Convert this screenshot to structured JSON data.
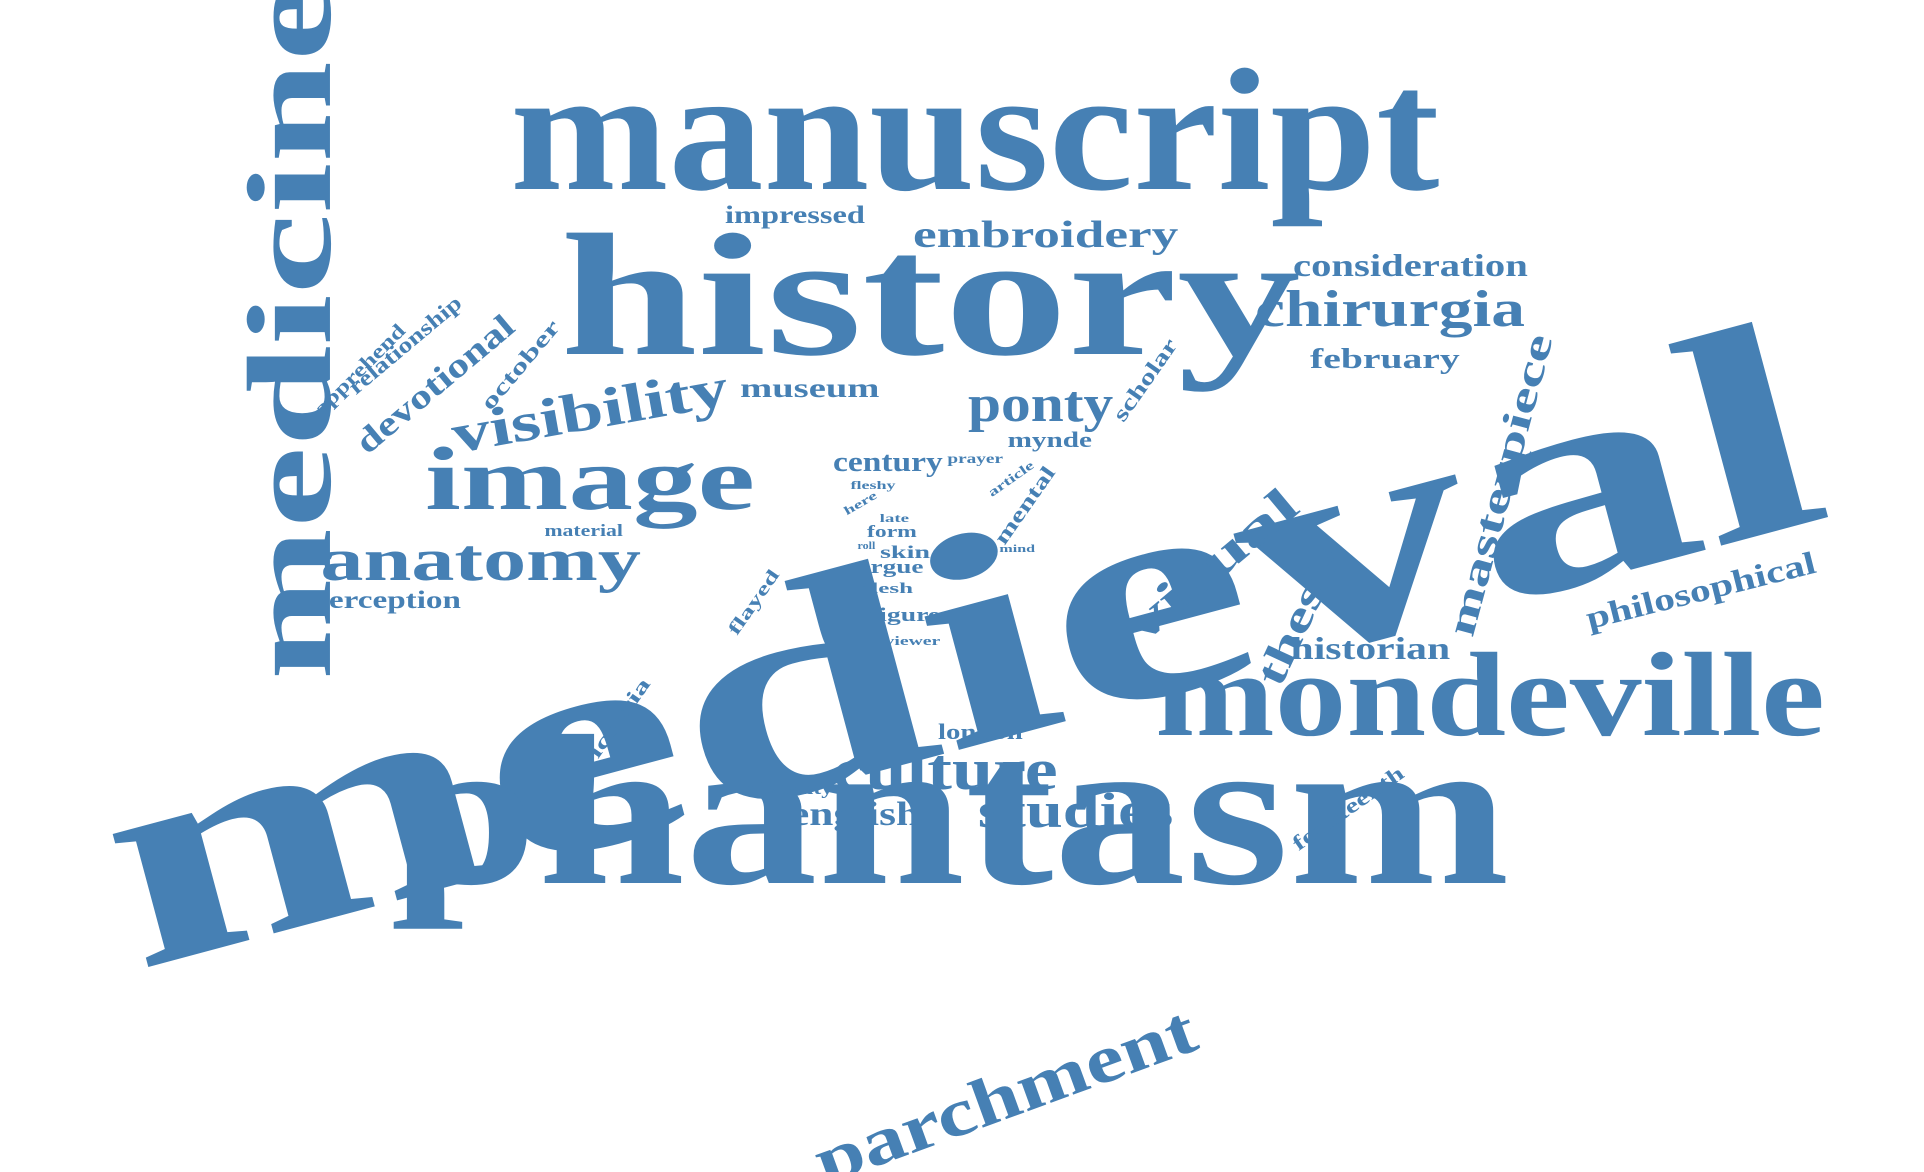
{
  "color": "#4680b4",
  "words": [
    {
      "key": "medieval",
      "text": "medieval"
    },
    {
      "key": "phantasm",
      "text": "phantasm"
    },
    {
      "key": "manuscript",
      "text": "manuscript"
    },
    {
      "key": "history",
      "text": "history"
    },
    {
      "key": "mondeville",
      "text": "mondeville"
    },
    {
      "key": "medicine",
      "text": "medicine"
    },
    {
      "key": "image",
      "text": "image"
    },
    {
      "key": "parchment",
      "text": "parchment"
    },
    {
      "key": "anatomy",
      "text": "anatomy"
    },
    {
      "key": "visibility",
      "text": "visibility"
    },
    {
      "key": "culture",
      "text": "culture"
    },
    {
      "key": "studies",
      "text": "studies"
    },
    {
      "key": "chirurgia",
      "text": "chirurgia"
    },
    {
      "key": "visual",
      "text": "visual"
    },
    {
      "key": "masterpiece",
      "text": "masterpiece"
    },
    {
      "key": "ponty",
      "text": "ponty"
    },
    {
      "key": "embroidery",
      "text": "embroidery"
    },
    {
      "key": "thesis",
      "text": "thesis"
    },
    {
      "key": "philosophical",
      "text": "philosophical"
    },
    {
      "key": "consideration",
      "text": "consideration"
    },
    {
      "key": "devotional",
      "text": "devotional"
    },
    {
      "key": "english",
      "text": "english"
    },
    {
      "key": "historian",
      "text": "historian"
    },
    {
      "key": "february",
      "text": "february"
    },
    {
      "key": "century",
      "text": "century"
    },
    {
      "key": "museum",
      "text": "museum"
    },
    {
      "key": "perception",
      "text": "perception"
    },
    {
      "key": "impressed",
      "text": "impressed"
    },
    {
      "key": "relationship",
      "text": "relationship"
    },
    {
      "key": "apprehend",
      "text": "apprehend"
    },
    {
      "key": "october",
      "text": "october"
    },
    {
      "key": "scholar",
      "text": "scholar"
    },
    {
      "key": "mynde",
      "text": "mynde"
    },
    {
      "key": "mental",
      "text": "mental"
    },
    {
      "key": "london",
      "text": "london"
    },
    {
      "key": "victoria",
      "text": "victoria"
    },
    {
      "key": "visuality",
      "text": "visuality"
    },
    {
      "key": "fourteenth",
      "text": "fourteenth"
    },
    {
      "key": "material",
      "text": "material"
    },
    {
      "key": "flayed",
      "text": "flayed"
    },
    {
      "key": "figure",
      "text": "figure"
    },
    {
      "key": "argue",
      "text": "argue"
    },
    {
      "key": "skin",
      "text": "skin"
    },
    {
      "key": "form",
      "text": "form"
    },
    {
      "key": "flesh",
      "text": "flesh"
    },
    {
      "key": "prayer",
      "text": "prayer"
    },
    {
      "key": "fleshy",
      "text": "fleshy"
    },
    {
      "key": "viewer",
      "text": "viewer"
    },
    {
      "key": "article",
      "text": "article"
    },
    {
      "key": "here",
      "text": "here"
    },
    {
      "key": "late",
      "text": "late"
    },
    {
      "key": "roll",
      "text": "roll"
    },
    {
      "key": "mind",
      "text": "mind"
    }
  ]
}
